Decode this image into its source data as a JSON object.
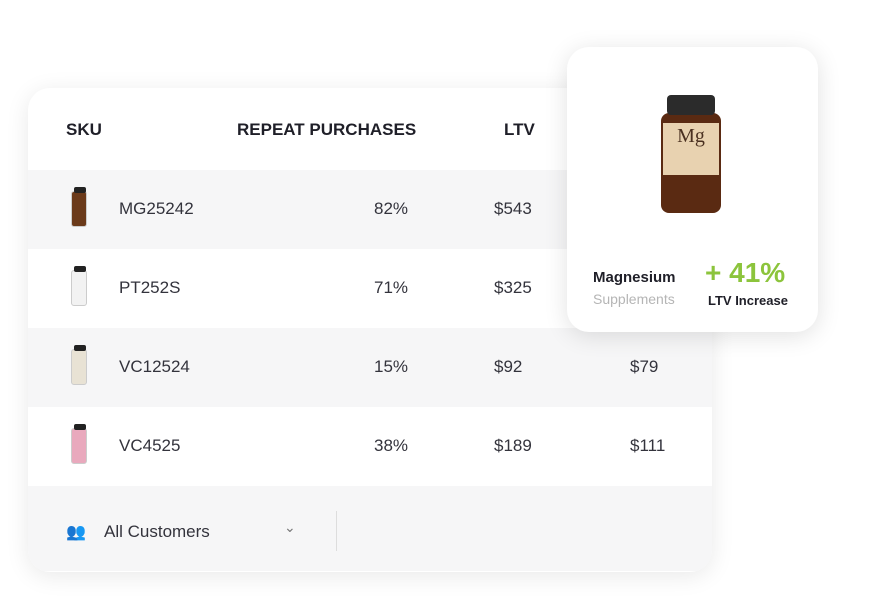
{
  "table": {
    "headers": {
      "sku": "SKU",
      "repeat": "REPEAT PURCHASES",
      "ltv": "LTV"
    },
    "rows": [
      {
        "sku": "MG25242",
        "repeat": "82%",
        "ltv": "$543",
        "col4": "",
        "color": "#6b3a1a"
      },
      {
        "sku": "PT252S",
        "repeat": "71%",
        "ltv": "$325",
        "col4": "",
        "color": "#f2f2f2"
      },
      {
        "sku": "VC12524",
        "repeat": "15%",
        "ltv": "$92",
        "col4": "$79",
        "color": "#e8e2d4"
      },
      {
        "sku": "VC4525",
        "repeat": "38%",
        "ltv": "$189",
        "col4": "$111",
        "color": "#e9a9bd"
      }
    ],
    "filter": {
      "icon": "users-icon",
      "label": "All Customers"
    }
  },
  "popup": {
    "bottle_label": "Mg",
    "name": "Magnesium",
    "category": "Supplements",
    "change": "+ 41%",
    "change_label": "LTV Increase",
    "accent": "#8cc43c"
  }
}
